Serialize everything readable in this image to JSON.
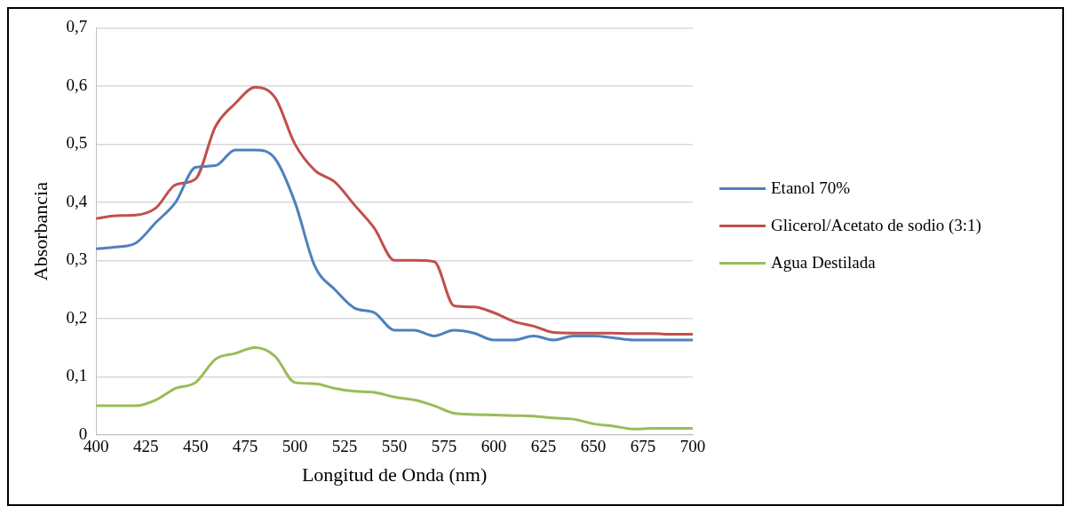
{
  "chart_data": {
    "type": "line",
    "xlabel": "Longitud de Onda (nm)",
    "ylabel": "Absorbancia",
    "x": [
      400,
      410,
      420,
      430,
      440,
      450,
      460,
      470,
      480,
      490,
      500,
      510,
      520,
      530,
      540,
      550,
      560,
      570,
      580,
      590,
      600,
      610,
      620,
      630,
      640,
      650,
      660,
      670,
      680,
      690,
      700
    ],
    "series": [
      {
        "name": "Etanol 70%",
        "color": "#4f81bd",
        "values": [
          0.32,
          0.323,
          0.33,
          0.365,
          0.4,
          0.46,
          0.463,
          0.49,
          0.49,
          0.475,
          0.4,
          0.29,
          0.25,
          0.218,
          0.21,
          0.18,
          0.18,
          0.17,
          0.18,
          0.175,
          0.163,
          0.163,
          0.17,
          0.163,
          0.17,
          0.17,
          0.167,
          0.163,
          0.163,
          0.163,
          0.163
        ]
      },
      {
        "name": "Glicerol/Acetato de sodio (3:1)",
        "color": "#c0504d",
        "values": [
          0.372,
          0.377,
          0.378,
          0.39,
          0.43,
          0.44,
          0.53,
          0.57,
          0.598,
          0.58,
          0.5,
          0.455,
          0.435,
          0.395,
          0.355,
          0.3,
          0.3,
          0.298,
          0.222,
          0.22,
          0.21,
          0.195,
          0.187,
          0.176,
          0.175,
          0.175,
          0.175,
          0.174,
          0.174,
          0.173,
          0.173
        ]
      },
      {
        "name": "Agua Destilada",
        "color": "#9bbb59",
        "values": [
          0.05,
          0.05,
          0.05,
          0.06,
          0.08,
          0.09,
          0.13,
          0.14,
          0.15,
          0.135,
          0.09,
          0.088,
          0.08,
          0.075,
          0.073,
          0.065,
          0.06,
          0.05,
          0.037,
          0.035,
          0.034,
          0.033,
          0.032,
          0.029,
          0.027,
          0.019,
          0.015,
          0.01,
          0.011,
          0.011,
          0.011
        ]
      }
    ],
    "xlim": [
      400,
      700
    ],
    "xticks": [
      400,
      425,
      450,
      475,
      500,
      525,
      550,
      575,
      600,
      625,
      650,
      675,
      700
    ],
    "ylim": [
      0,
      0.7
    ],
    "yticks": [
      0,
      {
        "value": 0.1,
        "label": "0,1"
      },
      {
        "value": 0.2,
        "label": "0,2"
      },
      {
        "value": 0.3,
        "label": "0,3"
      },
      {
        "value": 0.4,
        "label": "0,4"
      },
      {
        "value": 0.5,
        "label": "0,5"
      },
      {
        "value": 0.6,
        "label": "0,6"
      },
      {
        "value": 0.7,
        "label": "0,7"
      }
    ],
    "grid": "y",
    "legend": "right",
    "marker": "none",
    "line_style": "solid"
  }
}
